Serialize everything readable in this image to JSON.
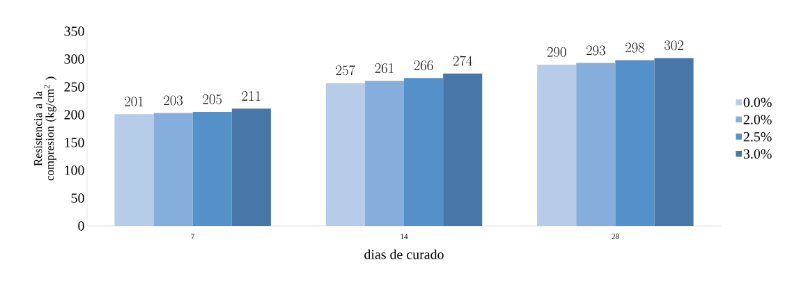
{
  "chart_data": {
    "type": "bar",
    "xlabel": "dias de curado",
    "ylabel": "Resistencia a la compresion (kg/cm$^{2}$ )",
    "categories": [
      "7",
      "14",
      "28"
    ],
    "series": [
      {
        "name": "0.0%",
        "color": "#b7cce8",
        "values": [
          201,
          257,
          290
        ]
      },
      {
        "name": "2.0%",
        "color": "#86aedd",
        "values": [
          203,
          261,
          293
        ]
      },
      {
        "name": "2.5%",
        "color": "#5591c9",
        "values": [
          205,
          266,
          298
        ]
      },
      {
        "name": "3.0%",
        "color": "#4677a8",
        "values": [
          211,
          274,
          302
        ]
      }
    ],
    "ylim": [
      0,
      350
    ],
    "yticks": [
      0,
      50,
      100,
      150,
      200,
      250,
      300,
      350
    ],
    "data_labels": true,
    "legend": "right",
    "grid": false
  }
}
